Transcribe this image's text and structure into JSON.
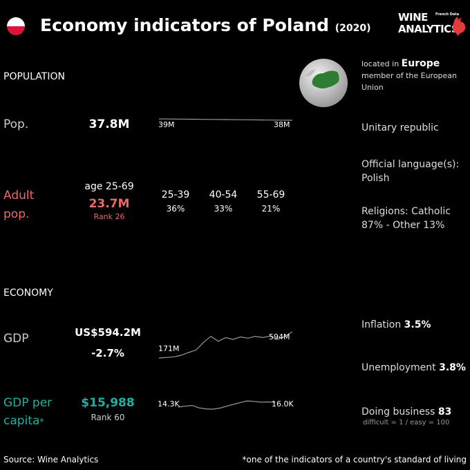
{
  "header": {
    "title": "Economy indicators of Poland",
    "year": "(2020)",
    "logo_line1": "WINE",
    "logo_line2": "ANALYTICS",
    "logo_small": "French Data",
    "flag_colors": [
      "#ffffff",
      "#dc143c"
    ]
  },
  "population": {
    "section": "POPULATION",
    "pop_label": "Pop.",
    "pop_value": "37.8M",
    "pop_spark_start": "39M",
    "pop_spark_end": "38M",
    "adult_label_1": "Adult",
    "adult_label_2": "pop.",
    "age_range": "age 25-69",
    "adult_value": "23.7M",
    "adult_rank": "Rank 26",
    "groups": [
      {
        "range": "25-39",
        "pct": "36%"
      },
      {
        "range": "40-54",
        "pct": "33%"
      },
      {
        "range": "55-69",
        "pct": "21%"
      }
    ]
  },
  "economy": {
    "section": "ECONOMY",
    "gdp_label": "GDP",
    "gdp_value": "US$594.2M",
    "gdp_growth": "-2.7%",
    "gdp_spark_start": "171M",
    "gdp_spark_end": "594M",
    "gdppc_label_1": "GDP per",
    "gdppc_label_2": "capita",
    "gdppc_star": "*",
    "gdppc_value": "$15,988",
    "gdppc_rank": "Rank 60",
    "gdppc_spark_start": "14.3K",
    "gdppc_spark_end": "16.0K"
  },
  "info": {
    "located_prefix": "located in",
    "continent": "Europe",
    "member": "member of the European Union",
    "government": "Unitary republic",
    "lang_label": "Official language(s):",
    "lang_value": "Polish",
    "religion_line1": "Religions: Catholic",
    "religion_line2": "87% - Other 13%",
    "inflation_label": "Inflation",
    "inflation_value": "3.5%",
    "unemployment_label": "Unemployment",
    "unemployment_value": "3.8%",
    "doing_business_label": "Doing business",
    "doing_business_value": "83",
    "doing_business_note": "difficult = 1 / easy = 100"
  },
  "footer": {
    "source": "Source: Wine  Analytics",
    "note": "*one of the indicators of a country's standard of living"
  },
  "colors": {
    "accent_red": "#e86a6a",
    "accent_teal": "#22b0a2",
    "globe_land": "#2e7d32"
  },
  "chart_data": [
    {
      "type": "line",
      "name": "population",
      "values": [
        39,
        38.9,
        38.8,
        38.7,
        38.6,
        38.5,
        38.4,
        38.3,
        38.2,
        38.1,
        38.0,
        37.9,
        37.8
      ],
      "start_label": "39M",
      "end_label": "38M"
    },
    {
      "type": "line",
      "name": "gdp",
      "values": [
        171,
        180,
        190,
        215,
        260,
        300,
        420,
        520,
        440,
        500,
        470,
        510,
        490,
        520,
        500,
        525,
        470,
        520,
        594
      ],
      "start_label": "171M",
      "end_label": "594M"
    },
    {
      "type": "line",
      "name": "gdp_per_capita",
      "values": [
        14.3,
        14.6,
        14.9,
        14.0,
        13.6,
        13.5,
        13.9,
        14.6,
        15.3,
        16.0,
        16.6,
        16.4,
        16.1,
        16.2,
        16.0
      ],
      "start_label": "14.3K",
      "end_label": "16.0K"
    }
  ]
}
